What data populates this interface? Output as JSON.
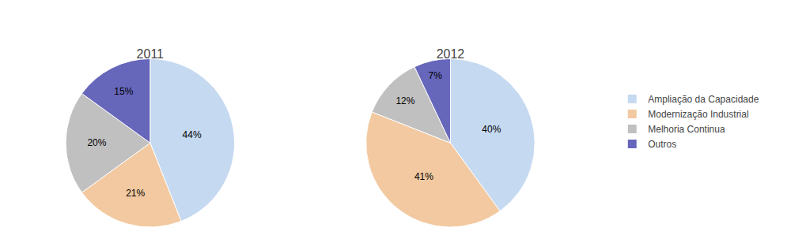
{
  "chart_data": [
    {
      "type": "pie",
      "title": "2011",
      "categories": [
        "Ampliação da Capacidade",
        "Modernização Industrial",
        "Melhoria Continua",
        "Outros"
      ],
      "values": [
        44,
        21,
        20,
        15
      ],
      "value_labels": [
        "44%",
        "21%",
        "20%",
        "15%"
      ],
      "colors": [
        "#c5d9f1",
        "#f2c9a0",
        "#c0c0c0",
        "#6666bb"
      ],
      "data_labels": true,
      "legend": "right"
    },
    {
      "type": "pie",
      "title": "2012",
      "categories": [
        "Ampliação da Capacidade",
        "Modernização Industrial",
        "Melhoria Continua",
        "Outros"
      ],
      "values": [
        40,
        41,
        12,
        7
      ],
      "value_labels": [
        "40%",
        "41%",
        "12%",
        "7%"
      ],
      "colors": [
        "#c5d9f1",
        "#f2c9a0",
        "#c0c0c0",
        "#6666bb"
      ],
      "data_labels": true,
      "legend": "right"
    }
  ]
}
